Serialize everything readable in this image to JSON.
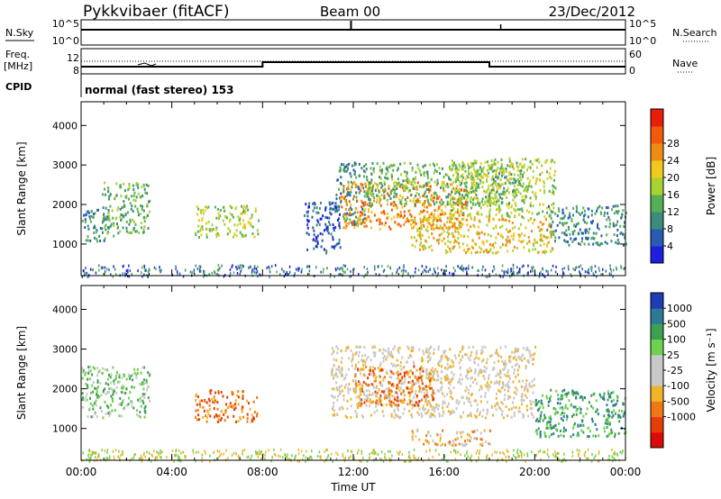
{
  "header": {
    "title": "Pykkvibaer (fitACF)",
    "beam": "Beam 00",
    "date": "23/Dec/2012"
  },
  "left_labels": {
    "nsky": "N.Sky",
    "freq_line1": "Freq.",
    "freq_line2": "[MHz]",
    "cpid": "CPID"
  },
  "right_labels": {
    "nsearch": "N.Search",
    "nave": "Nave"
  },
  "noise_panel": {
    "left_ticks": [
      "10^5",
      "10^0"
    ],
    "right_ticks": [
      "10^5",
      "10^0"
    ]
  },
  "freq_panel": {
    "left_ticks": [
      "12",
      "8"
    ],
    "right_ticks": [
      "60",
      "0"
    ]
  },
  "cpid_text": "normal (fast stereo) 153",
  "colors": {
    "power": [
      "#1e1ee0",
      "#2a5ab4",
      "#3c8c7a",
      "#55b055",
      "#a8d232",
      "#f0c81e",
      "#f08c14",
      "#f05a0a",
      "#e61e0a"
    ],
    "velocity": [
      "#1e3cb4",
      "#2c7a96",
      "#3ca050",
      "#6ed250",
      "#c8c8c8",
      "#c8c8c8",
      "#f0b428",
      "#f07814",
      "#e63c0a",
      "#dc0a0a"
    ]
  },
  "chart_data": [
    {
      "type": "heatmap",
      "panel": "power",
      "title": "",
      "xlabel": "",
      "ylabel": "Slant Range [km]",
      "x_range_hours": [
        0,
        24
      ],
      "ylim": [
        200,
        4600
      ],
      "y_ticks": [
        "1000",
        "2000",
        "3000",
        "4000"
      ],
      "colorbar_label": "Power [dB]",
      "colorbar_ticks": [
        "4",
        "8",
        "12",
        "16",
        "20",
        "24",
        "28"
      ],
      "colorbar_range": [
        0,
        30
      ],
      "echo_regions": [
        {
          "t": [
            0.0,
            1.4
          ],
          "r": [
            1100,
            1900
          ],
          "level": 2
        },
        {
          "t": [
            0.9,
            3.0
          ],
          "r": [
            1300,
            2600
          ],
          "level": 3
        },
        {
          "t": [
            5.0,
            7.8
          ],
          "r": [
            1200,
            2000
          ],
          "level": 4
        },
        {
          "t": [
            9.8,
            11.4
          ],
          "r": [
            800,
            2100
          ],
          "level": 1
        },
        {
          "t": [
            11.2,
            12.5
          ],
          "r": [
            1500,
            3100
          ],
          "level": 2
        },
        {
          "t": [
            11.4,
            17.0
          ],
          "r": [
            1400,
            2600
          ],
          "level": 6
        },
        {
          "t": [
            12.5,
            19.5
          ],
          "r": [
            2000,
            3100
          ],
          "level": 3
        },
        {
          "t": [
            14.5,
            20.8
          ],
          "r": [
            800,
            1700
          ],
          "level": 5
        },
        {
          "t": [
            16.2,
            20.9
          ],
          "r": [
            1700,
            3200
          ],
          "level": 4
        },
        {
          "t": [
            20.5,
            24.0
          ],
          "r": [
            1000,
            2000
          ],
          "level": 2
        }
      ]
    },
    {
      "type": "heatmap",
      "panel": "velocity",
      "title": "",
      "xlabel": "Time UT",
      "ylabel": "Slant Range [km]",
      "x_range_hours": [
        0,
        24
      ],
      "ylim": [
        200,
        4600
      ],
      "y_ticks": [
        "1000",
        "2000",
        "3000",
        "4000"
      ],
      "x_ticks": [
        "00:00",
        "04:00",
        "08:00",
        "12:00",
        "16:00",
        "20:00",
        "00:00"
      ],
      "colorbar_label": "Velocity [m s⁻¹]",
      "colorbar_ticks": [
        "1000",
        "500",
        "100",
        "25",
        "-25",
        "-100",
        "-500",
        "-1000"
      ],
      "echo_regions": [
        {
          "t": [
            0.0,
            3.0
          ],
          "r": [
            1300,
            2600
          ],
          "level": 3
        },
        {
          "t": [
            5.0,
            7.8
          ],
          "r": [
            1200,
            2000
          ],
          "level": 7
        },
        {
          "t": [
            11.0,
            20.0
          ],
          "r": [
            1300,
            3100
          ],
          "level": 5
        },
        {
          "t": [
            12.0,
            15.5
          ],
          "r": [
            1600,
            2600
          ],
          "level": 7
        },
        {
          "t": [
            14.5,
            18.0
          ],
          "r": [
            600,
            1000
          ],
          "level": 6
        },
        {
          "t": [
            20.0,
            24.0
          ],
          "r": [
            800,
            2000
          ],
          "level": 2
        }
      ]
    }
  ]
}
